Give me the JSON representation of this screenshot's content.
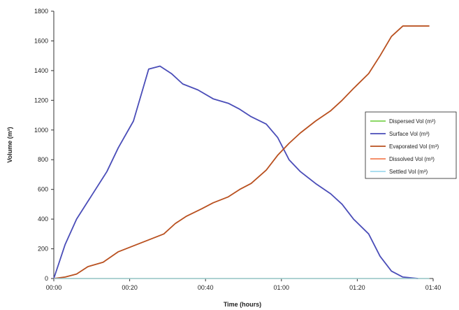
{
  "chart_data": {
    "type": "line",
    "xlabel": "Time (hours)",
    "ylabel": "Volume (m³)",
    "x_unit": "minutes",
    "xlim": [
      0,
      100
    ],
    "ylim": [
      0,
      1800
    ],
    "yticks": [
      0,
      200,
      400,
      600,
      800,
      1000,
      1200,
      1400,
      1600,
      1800
    ],
    "xticks": [
      {
        "value": 0,
        "label": "00:00"
      },
      {
        "value": 20,
        "label": "00:20"
      },
      {
        "value": 40,
        "label": "00:40"
      },
      {
        "value": 60,
        "label": "01:00"
      },
      {
        "value": 80,
        "label": "01:20"
      },
      {
        "value": 100,
        "label": "01:40"
      }
    ],
    "grid": false,
    "legend_position": "right",
    "series": [
      {
        "name": "Dispersed Vol (m³)",
        "color": "#66cc33",
        "width": 1.2,
        "x": [
          0,
          99
        ],
        "y": [
          0,
          0
        ]
      },
      {
        "name": "Surface Vol (m³)",
        "color": "#4a4db8",
        "width": 1.8,
        "x": [
          0,
          3,
          6,
          10,
          14,
          17,
          21,
          25,
          28,
          31,
          34,
          38,
          42,
          46,
          49,
          52,
          56,
          59,
          62,
          65,
          69,
          73,
          76,
          79,
          83,
          86,
          89,
          92,
          96
        ],
        "y": [
          0,
          230,
          400,
          560,
          720,
          880,
          1060,
          1410,
          1430,
          1380,
          1310,
          1270,
          1210,
          1180,
          1140,
          1090,
          1040,
          950,
          800,
          720,
          640,
          570,
          500,
          400,
          300,
          150,
          50,
          10,
          0
        ]
      },
      {
        "name": "Evaporated Vol (m³)",
        "color": "#b9501f",
        "width": 1.8,
        "x": [
          0,
          3,
          6,
          9,
          13,
          17,
          21,
          25,
          29,
          32,
          35,
          39,
          42,
          46,
          49,
          52,
          56,
          59,
          62,
          65,
          69,
          73,
          76,
          79,
          83,
          86,
          89,
          92,
          95,
          99
        ],
        "y": [
          0,
          10,
          30,
          80,
          110,
          180,
          220,
          260,
          300,
          370,
          420,
          470,
          510,
          550,
          600,
          640,
          730,
          830,
          910,
          980,
          1060,
          1130,
          1200,
          1280,
          1380,
          1500,
          1630,
          1700,
          1700,
          1700
        ]
      },
      {
        "name": "Dissolved Vol (m³)",
        "color": "#f26c3a",
        "width": 1.2,
        "x": [
          0,
          99
        ],
        "y": [
          0,
          0
        ]
      },
      {
        "name": "Settled Vol (m³)",
        "color": "#8fd3ec",
        "width": 1.2,
        "x": [
          0,
          99
        ],
        "y": [
          0,
          0
        ]
      }
    ]
  }
}
